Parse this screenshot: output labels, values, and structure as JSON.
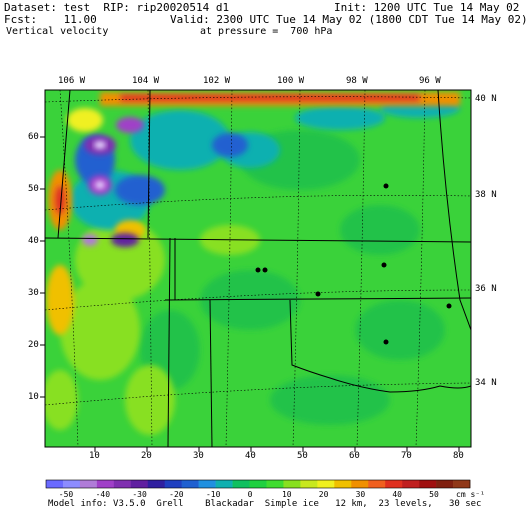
{
  "header": {
    "dataset": "Dataset: test  RIP: rip20020514 d1",
    "init": "Init: 1200 UTC Tue 14 May 02",
    "fcst": "Fcst:    11.00",
    "valid": "Valid: 2300 UTC Tue 14 May 02 (1800 CDT Tue 14 May 02)",
    "field": "Vertical velocity",
    "pressure": "at pressure =  700 hPa"
  },
  "map": {
    "top_longitudes": [
      "106 W",
      "104 W",
      "102 W",
      "100 W",
      "98 W",
      "96 W"
    ],
    "right_latitudes": [
      "40 N",
      "38 N",
      "36 N",
      "34 N"
    ],
    "left_grid_labels": [
      "60",
      "50",
      "40",
      "30",
      "20",
      "10"
    ],
    "bottom_grid_labels": [
      "10",
      "20",
      "30",
      "40",
      "50",
      "60",
      "70",
      "80"
    ]
  },
  "colorbar": {
    "labels": [
      "-50",
      "-40",
      "-30",
      "-20",
      "-10",
      "0",
      "10",
      "20",
      "30",
      "40",
      "50"
    ],
    "units": "cm s⁻¹",
    "colors": [
      "#6a6aff",
      "#8c8cff",
      "#b07cd8",
      "#a040c8",
      "#8030b0",
      "#6020a0",
      "#3020a0",
      "#2040c0",
      "#2060d0",
      "#2090e0",
      "#10b0b0",
      "#10c060",
      "#20d040",
      "#40dc30",
      "#88e020",
      "#c8e820",
      "#f0f020",
      "#f0c000",
      "#f09000",
      "#f06020",
      "#e03020",
      "#c02020",
      "#a01010",
      "#802010",
      "#903818"
    ]
  },
  "footer": {
    "model_info": "Model info: V3.5.0  Grell    Blackadar  Simple ice   12 km,  23 levels,   30 sec"
  }
}
